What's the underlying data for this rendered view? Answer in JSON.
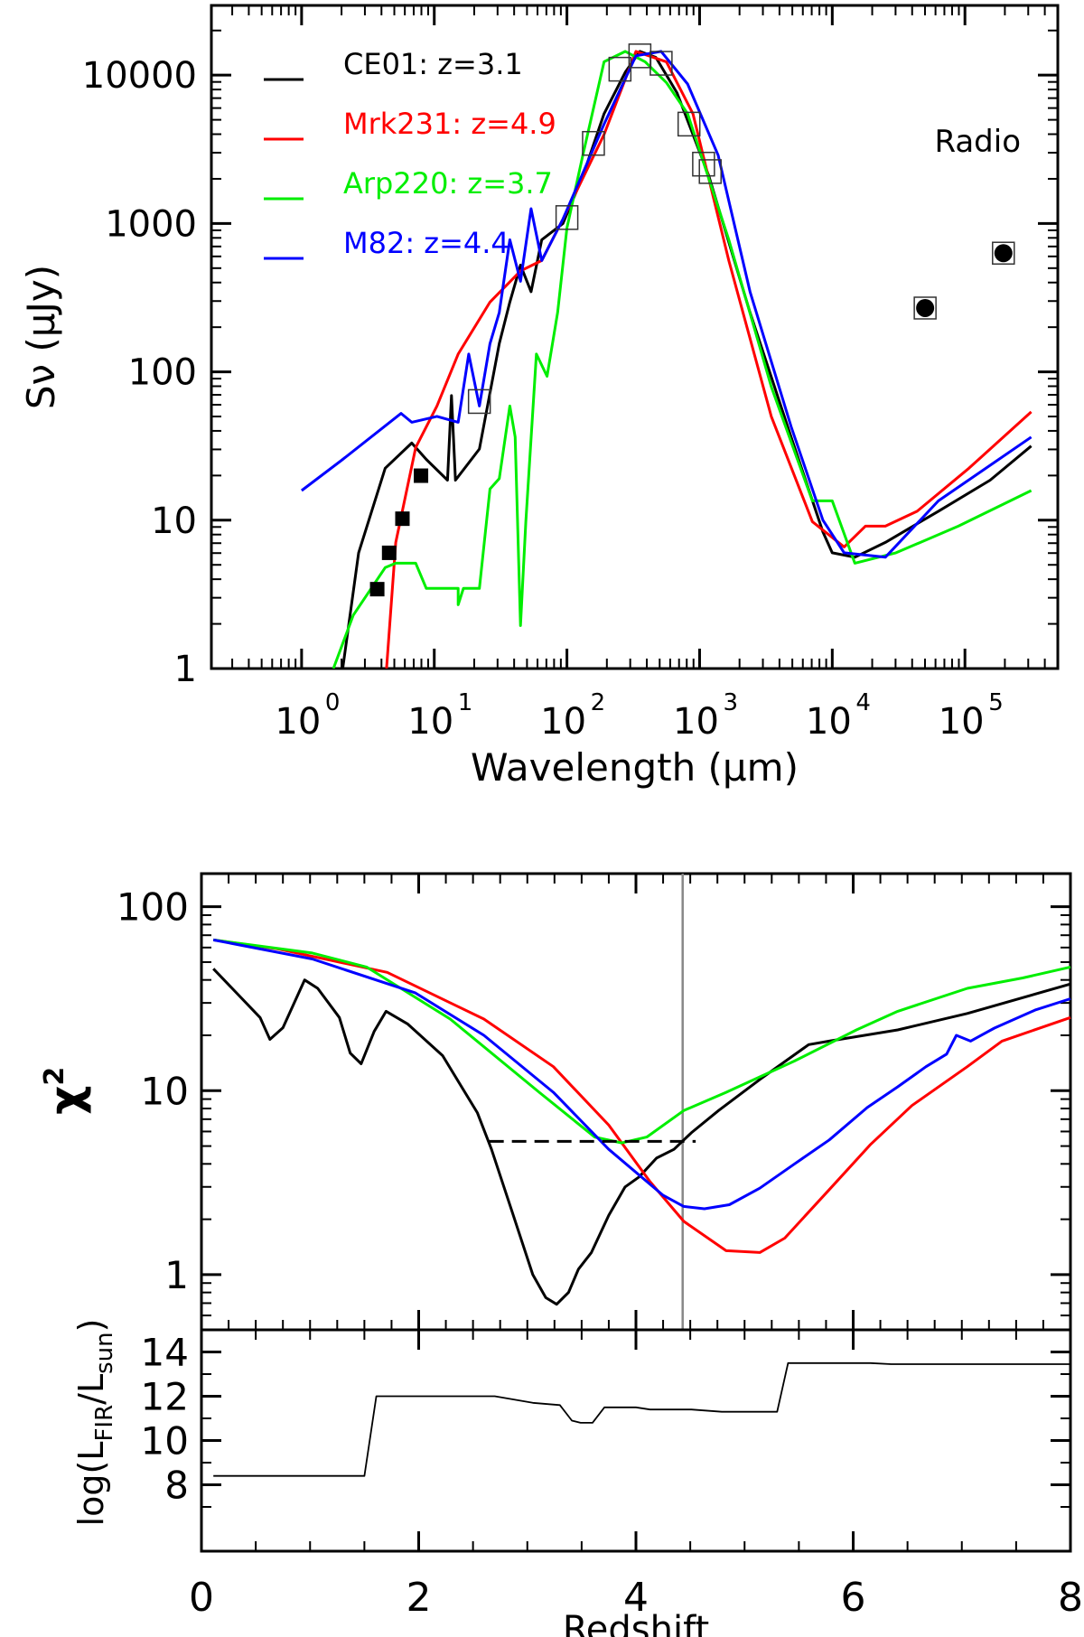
{
  "chart_data": [
    {
      "type": "line",
      "panel": "sed",
      "xlabel": "Wavelength (μm)",
      "ylabel": "Sν (μJy)",
      "xscale": "log",
      "yscale": "log",
      "xlim_log10": [
        -0.68,
        5.7
      ],
      "ylim_log10": [
        0,
        4.47
      ],
      "xticks": [
        {
          "v": 0,
          "label": "10",
          "exp": "0"
        },
        {
          "v": 1,
          "label": "10",
          "exp": "1"
        },
        {
          "v": 2,
          "label": "10",
          "exp": "2"
        },
        {
          "v": 3,
          "label": "10",
          "exp": "3"
        },
        {
          "v": 4,
          "label": "10",
          "exp": "4"
        },
        {
          "v": 5,
          "label": "10",
          "exp": "5"
        }
      ],
      "yticks": [
        {
          "v": 0,
          "label": "1"
        },
        {
          "v": 1,
          "label": "10"
        },
        {
          "v": 2,
          "label": "100"
        },
        {
          "v": 3,
          "label": "1000"
        },
        {
          "v": 4,
          "label": "10000"
        }
      ],
      "annotation": "Radio",
      "legend_position": "top-left",
      "series": [
        {
          "name": "CE01: z=3.1",
          "color": "#000000",
          "points_log10": [
            [
              0.31,
              0
            ],
            [
              0.43,
              0.78
            ],
            [
              0.63,
              1.35
            ],
            [
              0.83,
              1.52
            ],
            [
              0.94,
              1.41
            ],
            [
              1.1,
              1.27
            ],
            [
              1.13,
              1.84
            ],
            [
              1.16,
              1.27
            ],
            [
              1.34,
              1.48
            ],
            [
              1.49,
              2.19
            ],
            [
              1.57,
              2.47
            ],
            [
              1.65,
              2.72
            ],
            [
              1.73,
              2.54
            ],
            [
              1.81,
              2.89
            ],
            [
              1.97,
              3.0
            ],
            [
              2.12,
              3.32
            ],
            [
              2.28,
              3.74
            ],
            [
              2.44,
              4.02
            ],
            [
              2.55,
              4.16
            ],
            [
              2.67,
              4.12
            ],
            [
              2.83,
              3.88
            ],
            [
              3.07,
              3.32
            ],
            [
              3.38,
              2.4
            ],
            [
              3.69,
              1.56
            ],
            [
              3.93,
              0.92
            ],
            [
              4.0,
              0.78
            ],
            [
              4.17,
              0.75
            ],
            [
              4.4,
              0.85
            ],
            [
              4.8,
              1.06
            ],
            [
              5.19,
              1.27
            ],
            [
              5.5,
              1.5
            ]
          ]
        },
        {
          "name": "Mrk231: z=4.9",
          "color": "#ff0000",
          "points_log10": [
            [
              0.64,
              0
            ],
            [
              0.71,
              0.85
            ],
            [
              0.86,
              1.49
            ],
            [
              1.02,
              1.77
            ],
            [
              1.18,
              2.12
            ],
            [
              1.42,
              2.47
            ],
            [
              1.65,
              2.68
            ],
            [
              1.81,
              2.75
            ],
            [
              1.97,
              3.03
            ],
            [
              2.28,
              3.6
            ],
            [
              2.52,
              4.16
            ],
            [
              2.75,
              4.09
            ],
            [
              2.95,
              3.74
            ],
            [
              3.22,
              2.75
            ],
            [
              3.54,
              1.7
            ],
            [
              3.85,
              0.99
            ],
            [
              4.09,
              0.82
            ],
            [
              4.25,
              0.96
            ],
            [
              4.4,
              0.96
            ],
            [
              4.64,
              1.06
            ],
            [
              5.03,
              1.35
            ],
            [
              5.5,
              1.73
            ]
          ]
        },
        {
          "name": "Arp220: z=3.7",
          "color": "#00ee00",
          "points_log10": [
            [
              0.24,
              0
            ],
            [
              0.39,
              0.36
            ],
            [
              0.63,
              0.68
            ],
            [
              0.71,
              0.71
            ],
            [
              0.86,
              0.71
            ],
            [
              0.94,
              0.54
            ],
            [
              1.18,
              0.54
            ],
            [
              1.18,
              0.43
            ],
            [
              1.22,
              0.54
            ],
            [
              1.34,
              0.54
            ],
            [
              1.42,
              1.21
            ],
            [
              1.49,
              1.28
            ],
            [
              1.57,
              1.77
            ],
            [
              1.61,
              1.56
            ],
            [
              1.65,
              0.29
            ],
            [
              1.69,
              0.99
            ],
            [
              1.77,
              2.12
            ],
            [
              1.85,
              1.97
            ],
            [
              1.93,
              2.4
            ],
            [
              2.0,
              2.97
            ],
            [
              2.12,
              3.46
            ],
            [
              2.28,
              4.09
            ],
            [
              2.44,
              4.16
            ],
            [
              2.59,
              4.09
            ],
            [
              2.75,
              3.95
            ],
            [
              2.91,
              3.74
            ],
            [
              3.22,
              2.89
            ],
            [
              3.54,
              1.9
            ],
            [
              3.85,
              1.13
            ],
            [
              4.0,
              1.13
            ],
            [
              4.17,
              0.71
            ],
            [
              4.48,
              0.78
            ],
            [
              4.95,
              0.96
            ],
            [
              5.5,
              1.2
            ]
          ]
        },
        {
          "name": "M82: z=4.4",
          "color": "#0000ff",
          "points_log10": [
            [
              0,
              1.2
            ],
            [
              0.31,
              1.41
            ],
            [
              0.75,
              1.72
            ],
            [
              0.83,
              1.66
            ],
            [
              1.02,
              1.7
            ],
            [
              1.18,
              1.66
            ],
            [
              1.26,
              2.12
            ],
            [
              1.34,
              1.77
            ],
            [
              1.42,
              2.19
            ],
            [
              1.49,
              2.4
            ],
            [
              1.57,
              2.89
            ],
            [
              1.65,
              2.61
            ],
            [
              1.73,
              3.1
            ],
            [
              1.81,
              2.75
            ],
            [
              1.97,
              3.03
            ],
            [
              2.28,
              3.67
            ],
            [
              2.52,
              4.13
            ],
            [
              2.71,
              4.16
            ],
            [
              2.91,
              3.94
            ],
            [
              3.14,
              3.46
            ],
            [
              3.38,
              2.54
            ],
            [
              3.69,
              1.63
            ],
            [
              3.93,
              1.0
            ],
            [
              4.09,
              0.78
            ],
            [
              4.4,
              0.75
            ],
            [
              4.8,
              1.13
            ],
            [
              5.5,
              1.56
            ]
          ]
        }
      ],
      "filled_squares_log10": [
        [
          0.57,
          0.535
        ],
        [
          0.66,
          0.78
        ],
        [
          0.76,
          1.01
        ],
        [
          0.9,
          1.3
        ]
      ],
      "open_squares_log10": [
        [
          1.34,
          1.8
        ],
        [
          2.0,
          3.04
        ],
        [
          2.2,
          3.54
        ],
        [
          2.4,
          4.04
        ],
        [
          2.55,
          4.13
        ],
        [
          2.71,
          4.08
        ],
        [
          2.92,
          3.67
        ],
        [
          3.03,
          3.4
        ],
        [
          3.08,
          3.35
        ]
      ],
      "radio_points_log10": [
        [
          4.7,
          2.43
        ],
        [
          5.29,
          2.8
        ]
      ]
    },
    {
      "type": "line",
      "panel": "chi2",
      "ylabel": "χ2",
      "yscale": "log",
      "xlim": [
        0,
        8
      ],
      "ylim_log10": [
        -0.3,
        2.18
      ],
      "yticks": [
        {
          "v": 0,
          "label": "1"
        },
        {
          "v": 1,
          "label": "10"
        },
        {
          "v": 2,
          "label": "100"
        }
      ],
      "vline_z": 4.43,
      "dashed_hline": {
        "z_from": 2.65,
        "z_to": 4.55,
        "chi2": 5.3
      },
      "series": [
        {
          "name": "CE01",
          "color": "#000000",
          "points": [
            [
              0.11,
              46
            ],
            [
              0.54,
              25
            ],
            [
              0.63,
              19
            ],
            [
              0.75,
              22
            ],
            [
              0.95,
              40
            ],
            [
              1.07,
              36
            ],
            [
              1.27,
              25
            ],
            [
              1.37,
              16
            ],
            [
              1.47,
              14
            ],
            [
              1.59,
              21
            ],
            [
              1.7,
              27
            ],
            [
              1.9,
              23
            ],
            [
              2.22,
              15.5
            ],
            [
              2.54,
              7.6
            ],
            [
              2.67,
              4.8
            ],
            [
              2.86,
              2.2
            ],
            [
              3.05,
              1.0
            ],
            [
              3.17,
              0.75
            ],
            [
              3.27,
              0.69
            ],
            [
              3.38,
              0.8
            ],
            [
              3.47,
              1.07
            ],
            [
              3.59,
              1.32
            ],
            [
              3.75,
              2.1
            ],
            [
              3.9,
              3.0
            ],
            [
              4.03,
              3.4
            ],
            [
              4.19,
              4.3
            ],
            [
              4.35,
              4.8
            ],
            [
              4.51,
              5.9
            ],
            [
              4.76,
              7.8
            ],
            [
              5.14,
              11.5
            ],
            [
              5.59,
              17.8
            ],
            [
              5.78,
              18.6
            ],
            [
              6.41,
              21.4
            ],
            [
              7.05,
              26.3
            ],
            [
              8.0,
              38
            ]
          ]
        },
        {
          "name": "Mrk231",
          "color": "#ff0000",
          "points": [
            [
              0.11,
              66
            ],
            [
              0.7,
              59
            ],
            [
              1.71,
              44
            ],
            [
              2.6,
              24.5
            ],
            [
              3.24,
              13.5
            ],
            [
              3.75,
              6.5
            ],
            [
              4.13,
              3.2
            ],
            [
              4.44,
              1.95
            ],
            [
              4.83,
              1.35
            ],
            [
              5.14,
              1.32
            ],
            [
              5.37,
              1.58
            ],
            [
              5.78,
              2.9
            ],
            [
              6.16,
              5.1
            ],
            [
              6.54,
              8.3
            ],
            [
              7.05,
              13.5
            ],
            [
              7.37,
              18.6
            ],
            [
              8.0,
              25
            ]
          ]
        },
        {
          "name": "Arp220",
          "color": "#00ee00",
          "points": [
            [
              0.11,
              66
            ],
            [
              1.02,
              56
            ],
            [
              1.52,
              47
            ],
            [
              2.29,
              24.5
            ],
            [
              3.11,
              9.8
            ],
            [
              3.62,
              5.6
            ],
            [
              3.87,
              5.2
            ],
            [
              4.1,
              5.6
            ],
            [
              4.44,
              7.8
            ],
            [
              4.83,
              9.8
            ],
            [
              5.46,
              14.5
            ],
            [
              6.03,
              21.4
            ],
            [
              6.41,
              27
            ],
            [
              7.05,
              36
            ],
            [
              7.56,
              41
            ],
            [
              8.0,
              47
            ]
          ]
        },
        {
          "name": "M82",
          "color": "#0000ff",
          "points": [
            [
              0.11,
              66
            ],
            [
              1.02,
              52
            ],
            [
              1.97,
              34
            ],
            [
              2.6,
              20
            ],
            [
              3.24,
              9.8
            ],
            [
              3.75,
              4.8
            ],
            [
              4.25,
              2.7
            ],
            [
              4.44,
              2.35
            ],
            [
              4.63,
              2.28
            ],
            [
              4.86,
              2.4
            ],
            [
              5.14,
              2.95
            ],
            [
              5.46,
              4.0
            ],
            [
              5.78,
              5.4
            ],
            [
              6.13,
              8.1
            ],
            [
              6.41,
              10.5
            ],
            [
              6.67,
              13.5
            ],
            [
              6.86,
              15.8
            ],
            [
              6.95,
              20
            ],
            [
              7.08,
              18.6
            ],
            [
              7.3,
              21.9
            ],
            [
              7.68,
              27.5
            ],
            [
              8.0,
              31.6
            ]
          ]
        }
      ]
    },
    {
      "type": "line",
      "panel": "lfir",
      "xlabel": "Redshift",
      "ylabel": "log(LFIR/Lsun)",
      "ylabel_parts": {
        "pre": "log(L",
        "sub1": "FIR",
        "mid": "/L",
        "sub2": "sun",
        "post": ")"
      },
      "xlim": [
        0,
        8
      ],
      "ylim": [
        5,
        15
      ],
      "xticks": [
        {
          "v": 0,
          "label": "0"
        },
        {
          "v": 2,
          "label": "2"
        },
        {
          "v": 4,
          "label": "4"
        },
        {
          "v": 6,
          "label": "6"
        },
        {
          "v": 8,
          "label": "8"
        }
      ],
      "yticks": [
        {
          "v": 8,
          "label": "8"
        },
        {
          "v": 10,
          "label": "10"
        },
        {
          "v": 12,
          "label": "12"
        },
        {
          "v": 14,
          "label": "14"
        }
      ],
      "series": [
        {
          "name": "LFIR",
          "color": "#000000",
          "points": [
            [
              0.11,
              8.4
            ],
            [
              1.5,
              8.4
            ],
            [
              1.61,
              12.0
            ],
            [
              2.7,
              12.0
            ],
            [
              3.05,
              11.7
            ],
            [
              3.3,
              11.6
            ],
            [
              3.41,
              10.9
            ],
            [
              3.49,
              10.8
            ],
            [
              3.6,
              10.8
            ],
            [
              3.71,
              11.5
            ],
            [
              4.0,
              11.5
            ],
            [
              4.13,
              11.4
            ],
            [
              4.51,
              11.4
            ],
            [
              4.79,
              11.3
            ],
            [
              5.3,
              11.3
            ],
            [
              5.4,
              13.5
            ],
            [
              6.16,
              13.5
            ],
            [
              6.35,
              13.45
            ],
            [
              8.0,
              13.45
            ]
          ]
        }
      ]
    }
  ]
}
